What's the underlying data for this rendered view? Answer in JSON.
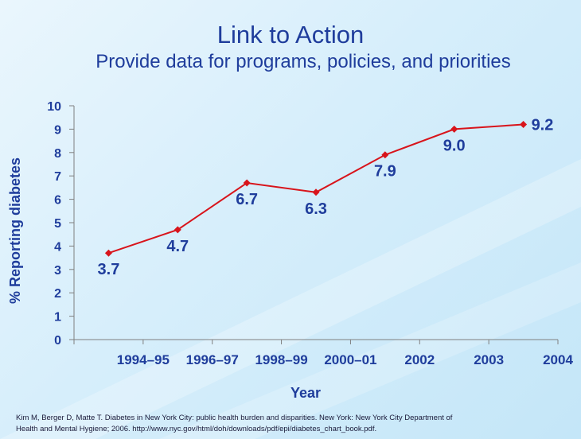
{
  "header": {
    "title": "Link to Action",
    "subtitle": "Provide data for programs, policies, and priorities"
  },
  "chart_data": {
    "type": "line",
    "categories": [
      "1994–95",
      "1996–97",
      "1998–99",
      "2000–01",
      "2002",
      "2003",
      "2004"
    ],
    "values": [
      3.7,
      4.7,
      6.7,
      6.3,
      7.9,
      9.0,
      9.2
    ],
    "data_labels": [
      "3.7",
      "4.7",
      "6.7",
      "6.3",
      "7.9",
      "9.0",
      "9.2"
    ],
    "xlabel": "Year",
    "ylabel": "% Reporting diabetes",
    "ylim": [
      0,
      10
    ],
    "yticks": [
      0,
      1,
      2,
      3,
      4,
      5,
      6,
      7,
      8,
      9,
      10
    ],
    "grid": false,
    "legend": "none",
    "colors": {
      "line": "#d8141b",
      "marker": "#d8141b",
      "text": "#1f3d9c",
      "axis": "#7f7f7f"
    }
  },
  "citation": {
    "line1": "Kim M, Berger D, Matte T. Diabetes in New York City: public health burden and disparities. New York: New York City Department of",
    "line2": "Health and Mental Hygiene; 2006. http://www.nyc.gov/html/doh/downloads/pdf/epi/diabetes_chart_book.pdf."
  }
}
